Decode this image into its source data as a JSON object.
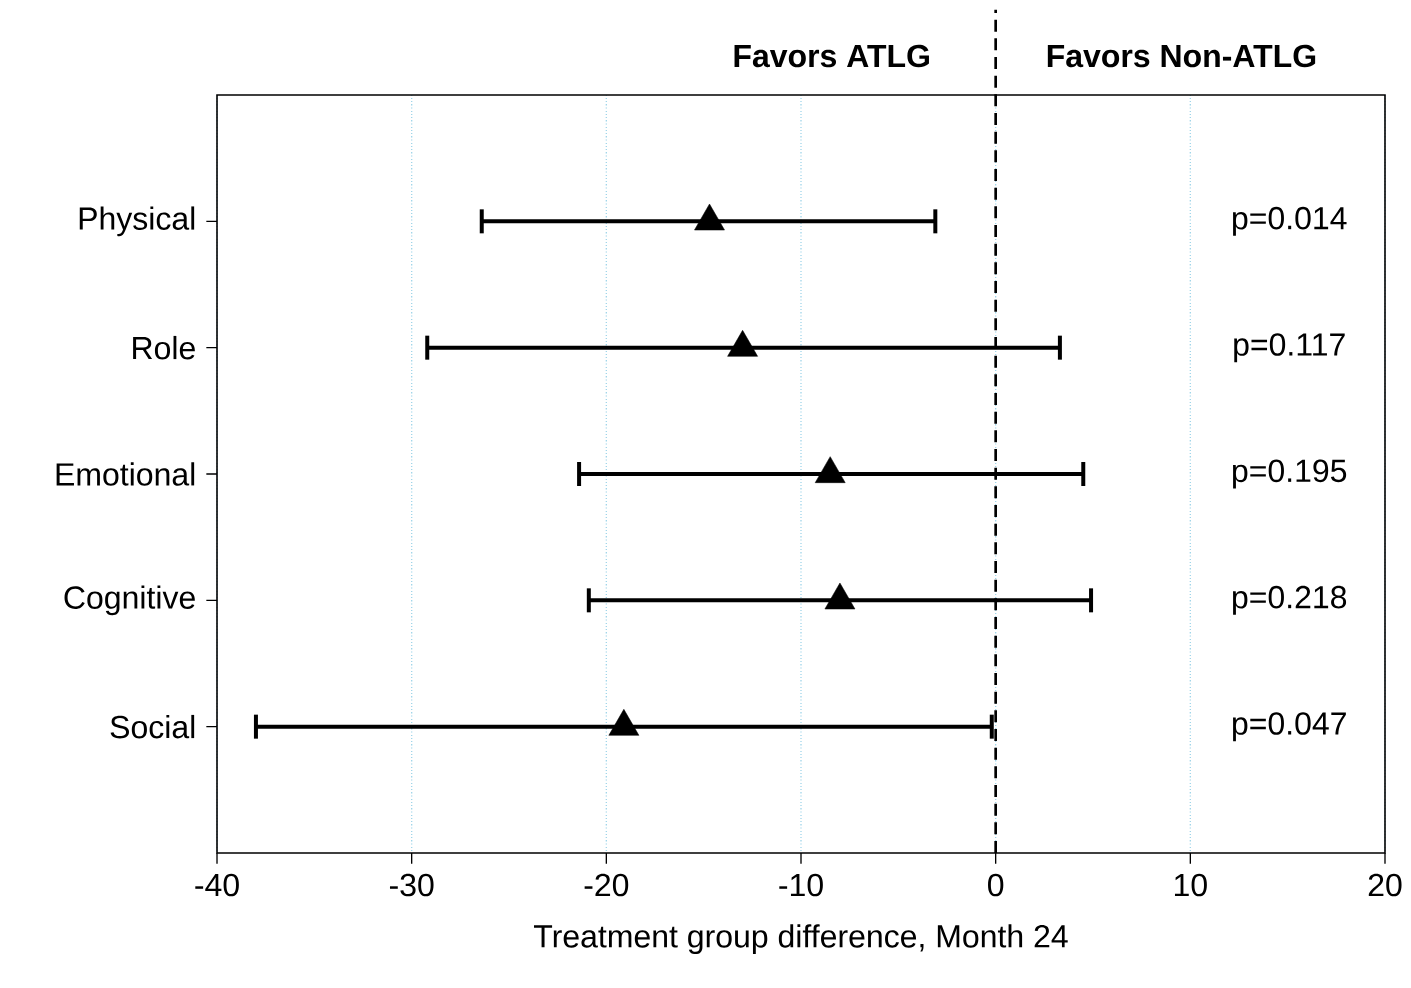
{
  "chart_data": {
    "type": "scatter",
    "orientation": "horizontal",
    "xlabel": "Treatment group difference, Month 24",
    "categories": [
      "Physical",
      "Role",
      "Emotional",
      "Cognitive",
      "Social"
    ],
    "series": [
      {
        "color": "#000000",
        "values": [
          -14.7,
          -13.0,
          -8.5,
          -8.0,
          -19.1
        ],
        "errors": [
          [
            -26.4,
            -3.1
          ],
          [
            -29.2,
            3.3
          ],
          [
            -21.4,
            4.5
          ],
          [
            -20.9,
            4.9
          ],
          [
            -38.0,
            -0.2
          ]
        ]
      }
    ],
    "xlim": [
      -40,
      20
    ],
    "xticks": [
      -40,
      -30,
      -20,
      -10,
      0,
      10,
      20
    ],
    "grid": "x",
    "marker": "triangle",
    "ref_lines": [
      {
        "axis": "x",
        "value": 0,
        "line_style": "dashed",
        "color": "#000000"
      }
    ],
    "annotations": [
      "Favors ATLG",
      "Favors Non-ATLG",
      "p=0.014",
      "p=0.117",
      "p=0.195",
      "p=0.218",
      "p=0.047"
    ]
  }
}
